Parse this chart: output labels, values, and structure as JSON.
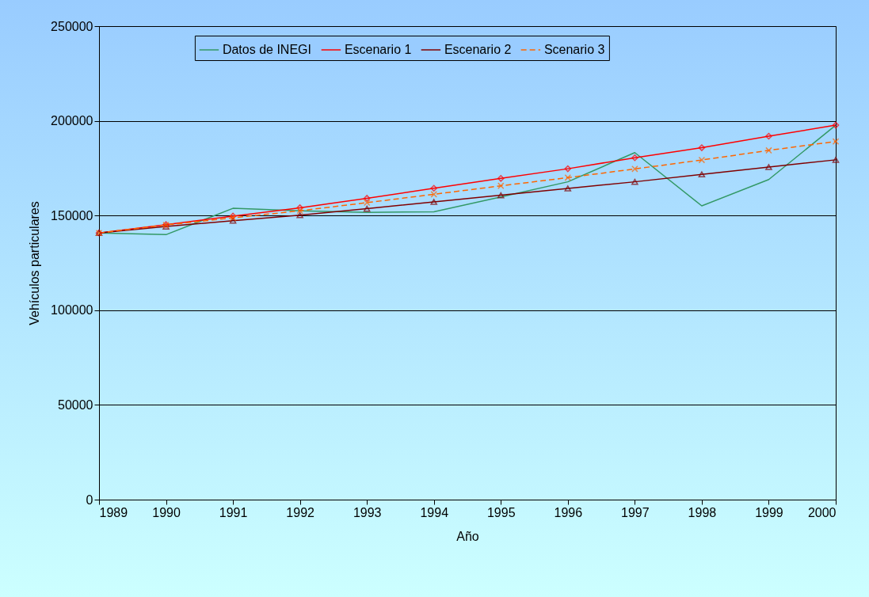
{
  "chart_data": {
    "type": "line",
    "xlabel": "Año",
    "ylabel": "Vehículos particulares",
    "x": [
      1989,
      1990,
      1991,
      1992,
      1993,
      1994,
      1995,
      1996,
      1997,
      1998,
      1999,
      2000
    ],
    "xlim": [
      1989,
      2000
    ],
    "xticks": [
      1989,
      1990,
      1991,
      1992,
      1993,
      1994,
      1995,
      1996,
      1997,
      1998,
      1999,
      2000
    ],
    "ylim": [
      0,
      250000
    ],
    "yticks": [
      0,
      50000,
      100000,
      150000,
      200000,
      250000
    ],
    "grid": "y",
    "legend": "top",
    "series": [
      {
        "name": "Datos de INEGI",
        "color": "#339966",
        "marker": "none",
        "line_style": "solid",
        "values": [
          140800,
          139900,
          153800,
          152500,
          151600,
          152000,
          159800,
          167800,
          183200,
          155100,
          169000,
          197700
        ]
      },
      {
        "name": "Escenario 1",
        "color": "#ff0000",
        "marker": "diamond",
        "line_style": "solid",
        "values": [
          140800,
          145200,
          149700,
          154100,
          159100,
          164400,
          169600,
          174700,
          180500,
          185800,
          191900,
          197700
        ]
      },
      {
        "name": "Escenario 2",
        "color": "#800000",
        "marker": "triangle",
        "line_style": "solid",
        "values": [
          140800,
          144200,
          147300,
          150200,
          153600,
          157200,
          160700,
          164300,
          167800,
          171700,
          175600,
          179400
        ]
      },
      {
        "name": "Scenario 3",
        "color": "#ff6600",
        "marker": "cross",
        "line_style": "dashed",
        "values": [
          140800,
          145000,
          148800,
          152500,
          156800,
          161200,
          165700,
          170000,
          174600,
          179300,
          184400,
          189100
        ]
      }
    ]
  }
}
